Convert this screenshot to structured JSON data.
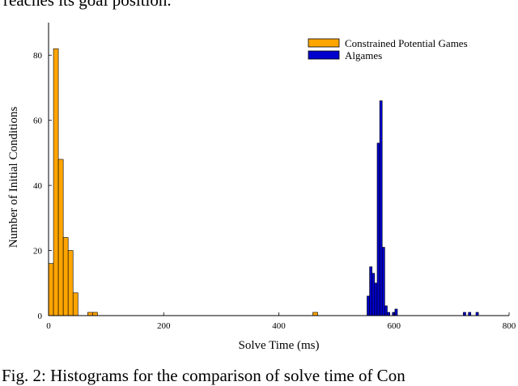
{
  "top_text": "reaches its goal position.",
  "caption": "Fig. 2: Histograms for the comparison of solve time of Con",
  "colors": {
    "cpg": "#FFA500",
    "algames": "#0000CD",
    "edge": "#000000"
  },
  "chart_data": {
    "type": "bar",
    "title": "",
    "xlabel": "Solve Time (ms)",
    "ylabel": "Number of Initial Conditions",
    "xlim": [
      0,
      800
    ],
    "ylim": [
      0,
      90
    ],
    "xticks": [
      0,
      200,
      400,
      600,
      800
    ],
    "yticks": [
      0,
      20,
      40,
      60,
      80
    ],
    "legend_position": "top-right",
    "series": [
      {
        "name": "Constrained Potential Games",
        "bin_width": 8.5,
        "bins": [
          {
            "x": 0,
            "count": 16
          },
          {
            "x": 8.5,
            "count": 82
          },
          {
            "x": 17,
            "count": 48
          },
          {
            "x": 25.5,
            "count": 24
          },
          {
            "x": 34,
            "count": 20
          },
          {
            "x": 42.5,
            "count": 7
          },
          {
            "x": 68,
            "count": 1
          },
          {
            "x": 76.5,
            "count": 1
          },
          {
            "x": 459,
            "count": 1
          }
        ]
      },
      {
        "name": "Algames",
        "bin_width": 4.4,
        "bins": [
          {
            "x": 553.2,
            "count": 6
          },
          {
            "x": 557.6,
            "count": 15
          },
          {
            "x": 562,
            "count": 13
          },
          {
            "x": 566.4,
            "count": 10
          },
          {
            "x": 570.8,
            "count": 53
          },
          {
            "x": 575.2,
            "count": 66
          },
          {
            "x": 579.6,
            "count": 21
          },
          {
            "x": 584,
            "count": 3
          },
          {
            "x": 588.4,
            "count": 1
          },
          {
            "x": 597.2,
            "count": 1
          },
          {
            "x": 601.6,
            "count": 2
          },
          {
            "x": 720.4,
            "count": 1
          },
          {
            "x": 729.2,
            "count": 1
          },
          {
            "x": 742.4,
            "count": 1
          }
        ]
      }
    ]
  }
}
